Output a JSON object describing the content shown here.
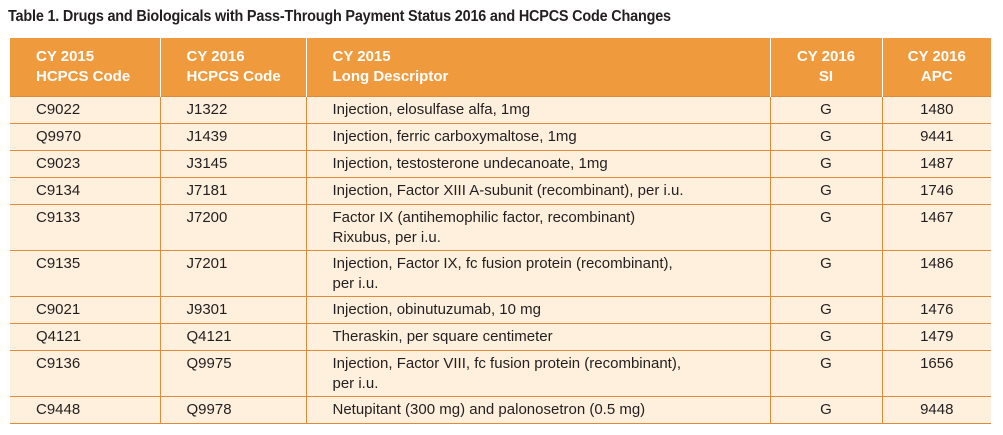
{
  "caption": "Table 1. Drugs and Biologicals with Pass-Through Payment Status 2016 and HCPCS Code Changes",
  "headers": [
    {
      "line1": "CY 2015",
      "line2": "HCPCS Code"
    },
    {
      "line1": "CY 2016",
      "line2": "HCPCS Code"
    },
    {
      "line1": "CY 2015",
      "line2": "Long Descriptor"
    },
    {
      "line1": "CY 2016",
      "line2": "SI"
    },
    {
      "line1": "CY 2016",
      "line2": "APC"
    }
  ],
  "rows": [
    {
      "code2015": "C9022",
      "code2016": "J1322",
      "descriptor": "Injection, elosulfase alfa, 1mg",
      "descriptor_line2": "",
      "si": "G",
      "apc": "1480"
    },
    {
      "code2015": "Q9970",
      "code2016": "J1439",
      "descriptor": "Injection, ferric carboxymaltose, 1mg",
      "descriptor_line2": "",
      "si": "G",
      "apc": "9441"
    },
    {
      "code2015": "C9023",
      "code2016": "J3145",
      "descriptor": "Injection, testosterone undecanoate, 1mg",
      "descriptor_line2": "",
      "si": "G",
      "apc": "1487"
    },
    {
      "code2015": "C9134",
      "code2016": "J7181",
      "descriptor": "Injection, Factor XIII A-subunit (recombinant), per i.u.",
      "descriptor_line2": "",
      "si": "G",
      "apc": "1746"
    },
    {
      "code2015": "C9133",
      "code2016": "J7200",
      "descriptor": "Factor IX (antihemophilic factor, recombinant)",
      "descriptor_line2": "Rixubus, per i.u.",
      "si": "G",
      "apc": "1467"
    },
    {
      "code2015": "C9135",
      "code2016": "J7201",
      "descriptor": "Injection, Factor IX, fc fusion protein (recombinant),",
      "descriptor_line2": "per i.u.",
      "si": "G",
      "apc": "1486"
    },
    {
      "code2015": "C9021",
      "code2016": "J9301",
      "descriptor": "Injection, obinutuzumab, 10 mg",
      "descriptor_line2": "",
      "si": "G",
      "apc": "1476"
    },
    {
      "code2015": "Q4121",
      "code2016": "Q4121",
      "descriptor": "Theraskin, per square centimeter",
      "descriptor_line2": "",
      "si": "G",
      "apc": "1479"
    },
    {
      "code2015": "C9136",
      "code2016": "Q9975",
      "descriptor": "Injection, Factor VIII, fc fusion protein (recombinant),",
      "descriptor_line2": "per i.u.",
      "si": "G",
      "apc": "1656"
    },
    {
      "code2015": "C9448",
      "code2016": "Q9978",
      "descriptor": "Netupitant (300 mg) and palonosetron (0.5 mg)",
      "descriptor_line2": "",
      "si": "G",
      "apc": "9448"
    }
  ]
}
